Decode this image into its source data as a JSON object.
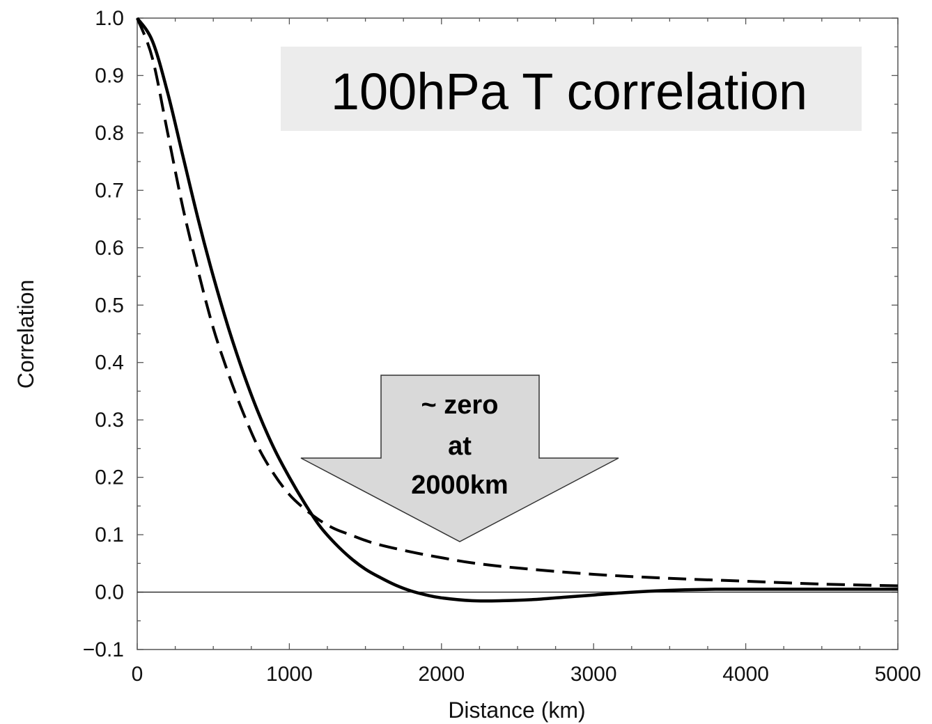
{
  "chart_data": {
    "type": "line",
    "title": "100hPa T correlation",
    "xlabel": "Distance (km)",
    "ylabel": "Correlation",
    "xlim": [
      0,
      5000
    ],
    "ylim": [
      -0.1,
      1.0
    ],
    "x_ticks": [
      "0",
      "1000",
      "2000",
      "3000",
      "4000",
      "5000"
    ],
    "y_ticks": [
      "−0.1",
      "0.0",
      "0.1",
      "0.2",
      "0.3",
      "0.4",
      "0.5",
      "0.6",
      "0.7",
      "0.8",
      "0.9",
      "1.0"
    ],
    "grid": false,
    "zero_line": true,
    "series": [
      {
        "style": "solid",
        "x": [
          0,
          100,
          200,
          300,
          400,
          500,
          600,
          700,
          800,
          900,
          1000,
          1100,
          1200,
          1300,
          1400,
          1500,
          1600,
          1700,
          1800,
          1900,
          2000,
          2200,
          2400,
          2600,
          2800,
          3000,
          3200,
          3400,
          3600,
          3800,
          4000,
          4500,
          5000
        ],
        "y": [
          1.0,
          0.96,
          0.87,
          0.76,
          0.65,
          0.55,
          0.46,
          0.38,
          0.31,
          0.25,
          0.2,
          0.155,
          0.115,
          0.085,
          0.06,
          0.04,
          0.025,
          0.012,
          0.002,
          -0.005,
          -0.01,
          -0.015,
          -0.015,
          -0.013,
          -0.009,
          -0.005,
          -0.001,
          0.002,
          0.004,
          0.005,
          0.005,
          0.005,
          0.005
        ]
      },
      {
        "style": "dashed",
        "x": [
          0,
          100,
          200,
          300,
          400,
          500,
          600,
          700,
          800,
          900,
          1000,
          1100,
          1200,
          1300,
          1400,
          1500,
          1600,
          1800,
          2000,
          2200,
          2500,
          3000,
          3500,
          4000,
          4500,
          5000
        ],
        "y": [
          1.0,
          0.93,
          0.8,
          0.67,
          0.56,
          0.46,
          0.38,
          0.31,
          0.25,
          0.205,
          0.17,
          0.145,
          0.125,
          0.11,
          0.1,
          0.09,
          0.082,
          0.07,
          0.06,
          0.051,
          0.042,
          0.031,
          0.024,
          0.019,
          0.014,
          0.011
        ]
      }
    ],
    "annotation": {
      "lines": [
        "~ zero",
        "at",
        "2000km"
      ],
      "points_to_x": 2000,
      "arrow_color": "#d9d9d9"
    },
    "title_box_color": "#ececec"
  }
}
